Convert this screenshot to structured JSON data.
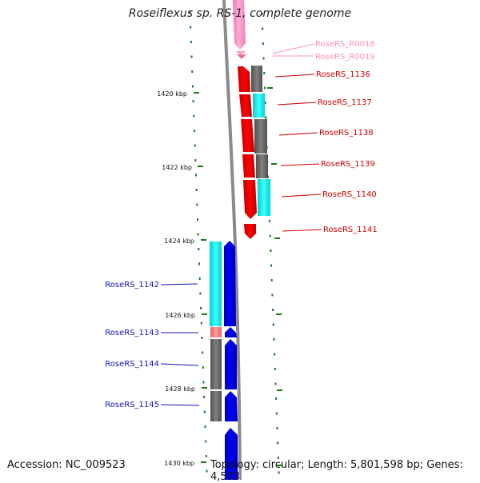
{
  "title": "Roseiflexus sp. RS-1, complete genome",
  "footer": {
    "accession_label": "Accession:",
    "accession_value": "NC_009523",
    "topology_text": "Topology: circular; Length: 5,801,598 bp; Genes: 4,573"
  },
  "colors": {
    "backbone": "#808080",
    "tick": "#1a7a1a",
    "forward_gene": "#ff0000",
    "reverse_gene": "#0000ff",
    "rna_gene": "#ff9ec4",
    "cds_cyan": "#00ffff",
    "cds_gray": "#6e6e6e",
    "cds_salmon": "#f08080"
  },
  "kbp_labels": [
    "1420 kbp",
    "1422 kbp",
    "1424 kbp",
    "1426 kbp",
    "1428 kbp",
    "1430 kbp"
  ],
  "genes": [
    {
      "label": "RoseRS_R0018",
      "strand": "forward",
      "type": "rna"
    },
    {
      "label": "RoseRS_R0019",
      "strand": "forward",
      "type": "rna"
    },
    {
      "label": "RoseRS_1136",
      "strand": "forward",
      "type": "gene"
    },
    {
      "label": "RoseRS_1137",
      "strand": "forward",
      "type": "gene"
    },
    {
      "label": "RoseRS_1138",
      "strand": "forward",
      "type": "gene"
    },
    {
      "label": "RoseRS_1139",
      "strand": "forward",
      "type": "gene"
    },
    {
      "label": "RoseRS_1140",
      "strand": "forward",
      "type": "gene"
    },
    {
      "label": "RoseRS_1141",
      "strand": "forward",
      "type": "gene"
    },
    {
      "label": "RoseRS_1142",
      "strand": "reverse",
      "type": "gene"
    },
    {
      "label": "RoseRS_1143",
      "strand": "reverse",
      "type": "gene"
    },
    {
      "label": "RoseRS_1144",
      "strand": "reverse",
      "type": "gene"
    },
    {
      "label": "RoseRS_1145",
      "strand": "reverse",
      "type": "gene"
    }
  ]
}
